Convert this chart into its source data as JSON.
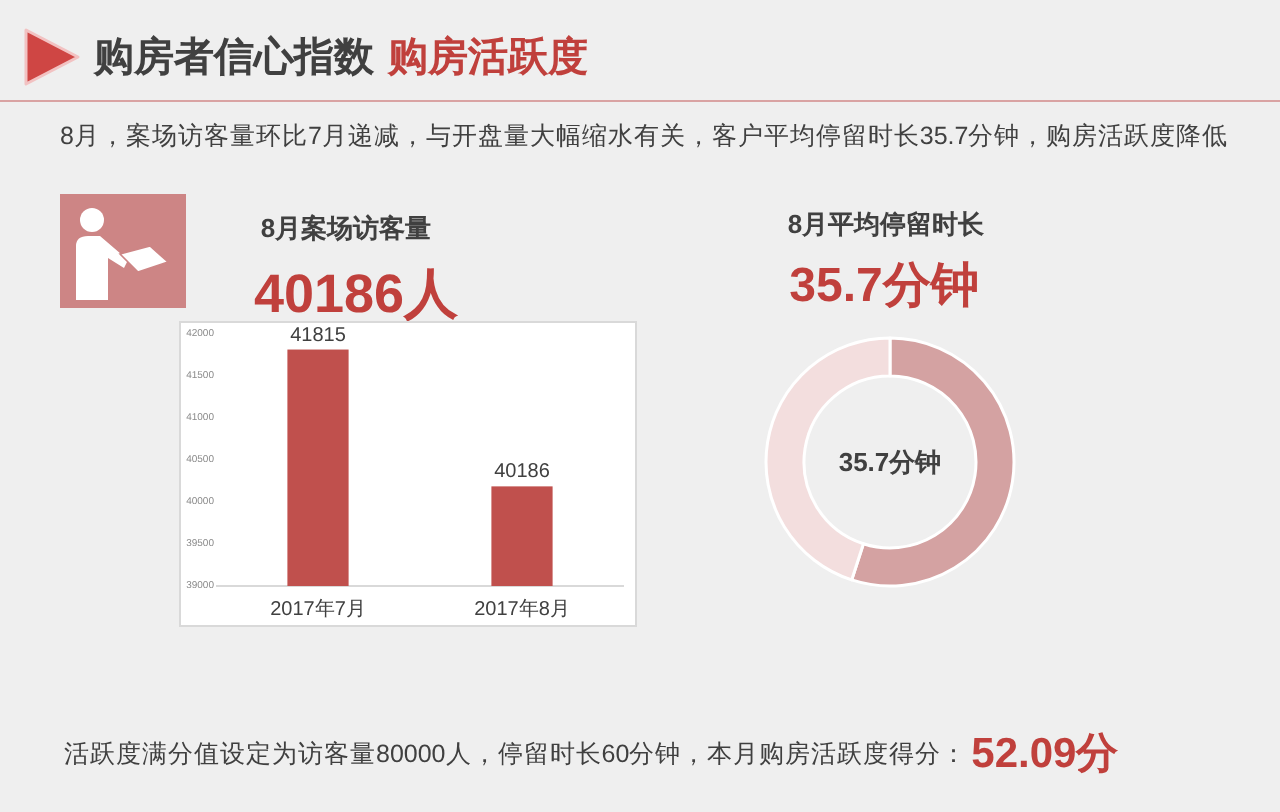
{
  "chart_data": [
    {
      "type": "other",
      "title": "购房者信心指数",
      "subtitle": "购房活跃度",
      "annotations": [
        "8月，案场访客量环比7月递减，与开盘量大幅缩水有关，客户平均停留时长35.7分钟，购房活跃度降低",
        "活跃度满分值设定为访客量80000人，停留时长60分钟，本月购房活跃度得分：",
        "52.09分"
      ]
    },
    {
      "type": "bar",
      "title": "8月案场访客量",
      "subtitle": "40186人",
      "categories": [
        "2017年7月",
        "2017年8月"
      ],
      "values": [
        41815,
        40186
      ],
      "color": "#c0504d",
      "ylim": [
        39000,
        42000
      ],
      "yticks": [
        39000,
        39500,
        40000,
        40500,
        41000,
        41500,
        42000
      ],
      "data_labels": true
    },
    {
      "type": "donut",
      "title": "8月平均停留时长",
      "subtitle": "35.7分钟",
      "categories": [
        null,
        null
      ],
      "values": [
        55,
        45
      ],
      "colors": [
        "#d4a2a2",
        "#f3dede"
      ],
      "annotations": [
        "35.7分钟"
      ]
    }
  ]
}
